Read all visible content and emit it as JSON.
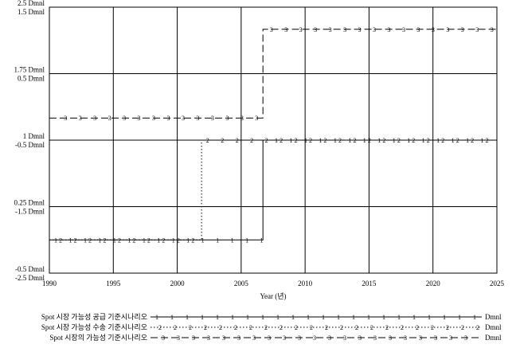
{
  "chart_data": {
    "type": "line",
    "xlabel": "Year (년)",
    "xlim": [
      1990,
      2025
    ],
    "x_ticks": [
      "1990",
      "1995",
      "2000",
      "2005",
      "2010",
      "2015",
      "2020",
      "2025"
    ],
    "y_scales": [
      {
        "series": 3,
        "labels": [
          "2.5 Dmnl",
          "1.75 Dmnl",
          "1 Dmnl",
          "0.25 Dmnl",
          "-0.5 Dmnl"
        ],
        "range": [
          -0.5,
          2.5
        ]
      },
      {
        "series": 1,
        "labels": [
          "1.5 Dmnl",
          "0.5 Dmnl",
          "-0.5 Dmnl",
          "-1.5 Dmnl",
          "-2.5 Dmnl"
        ],
        "range": [
          -2.5,
          1.5
        ]
      },
      {
        "series": 2,
        "labels": [],
        "range": [
          -2.5,
          1.5
        ]
      }
    ],
    "grid": true,
    "legend_position": "bottom",
    "series": [
      {
        "name": "Spot 시장 가능성 공급 기준시나리오",
        "marker": "1",
        "unit": "Dmnl",
        "style": "solid",
        "x": [
          1990,
          2006.7,
          2006.7,
          2025
        ],
        "values": [
          -2,
          -2,
          -0.5,
          -0.5
        ]
      },
      {
        "name": "Spot 시장 가능성 수송 기준시나리오",
        "marker": "2",
        "unit": "Dmnl",
        "style": "dotted",
        "x": [
          1990,
          2001.9,
          2001.9,
          2025
        ],
        "values": [
          -2,
          -2,
          -0.5,
          -0.5
        ]
      },
      {
        "name": "Spot 시장의 가능성 기준시나리오",
        "marker": "3",
        "unit": "Dmnl",
        "style": "dashed",
        "x": [
          1990,
          2006.7,
          2006.7,
          2025
        ],
        "values": [
          1.25,
          1.25,
          2.25,
          2.25
        ]
      }
    ]
  }
}
